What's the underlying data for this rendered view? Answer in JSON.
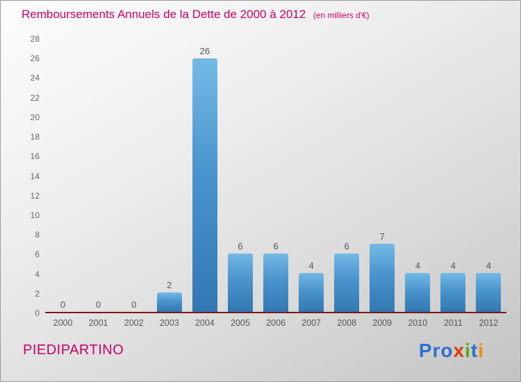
{
  "header": {
    "title": "Remboursements Annuels de la Dette de 2000 à 2012",
    "subtitle": "(en milliers d'€)"
  },
  "footer": {
    "name": "PIEDIPARTINO"
  },
  "logo": {
    "name": "Proxiti",
    "letters": [
      {
        "ch": "P",
        "color": "#2f6fd0"
      },
      {
        "ch": "r",
        "color": "#2f6fd0"
      },
      {
        "ch": "o",
        "color": "#2f6fd0"
      },
      {
        "ch": "x",
        "color": "#e03c00"
      },
      {
        "ch": "i",
        "color": "#58a618"
      },
      {
        "ch": "t",
        "color": "#2f6fd0"
      },
      {
        "ch": "i",
        "color": "#f08c00"
      }
    ]
  },
  "chart_data": {
    "type": "bar",
    "title": "Remboursements Annuels de la Dette de 2000 à 2012",
    "subtitle": "(en milliers d'€)",
    "categories": [
      "2000",
      "2001",
      "2002",
      "2003",
      "2004",
      "2005",
      "2006",
      "2007",
      "2008",
      "2009",
      "2010",
      "2011",
      "2012"
    ],
    "values": [
      0,
      0,
      0,
      2,
      26,
      6,
      6,
      4,
      6,
      7,
      4,
      4,
      4
    ],
    "xlabel": "",
    "ylabel": "",
    "ylim": [
      0,
      28
    ],
    "ytick_step": 2,
    "grid": false,
    "legend": null,
    "bar_color_top": "#74bae6",
    "bar_color_bottom": "#3277b1",
    "axis_color": "#7b1818",
    "value_labels": true
  }
}
